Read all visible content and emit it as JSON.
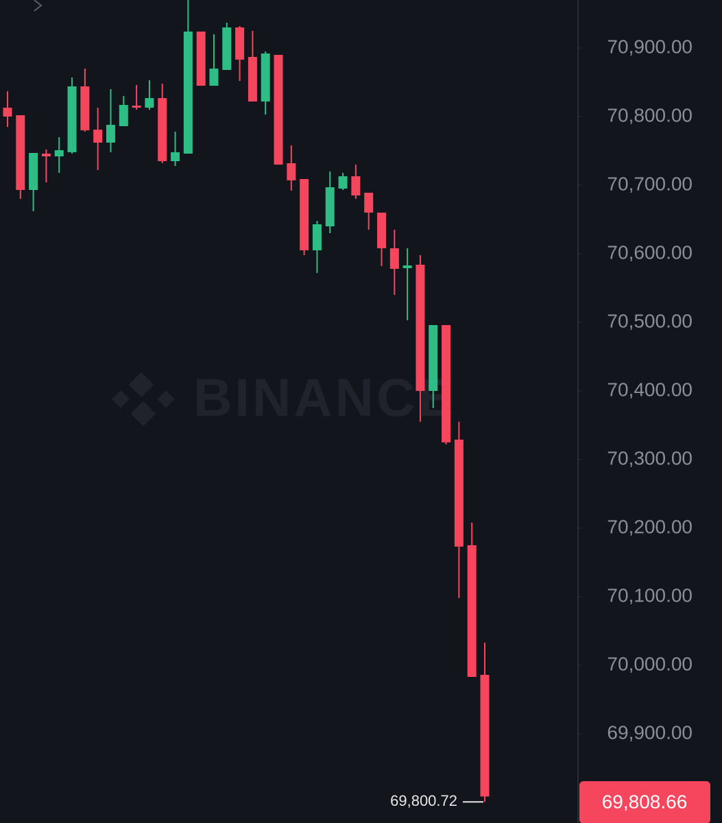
{
  "chart_data": {
    "type": "candlestick",
    "watermark": "BINANCE",
    "up_color": "#2ebd85",
    "down_color": "#f6465d",
    "open": [
      70813,
      70802,
      70693,
      70746,
      70742,
      70748,
      70844,
      70781,
      70762,
      70786,
      70816,
      70813,
      70827,
      70735,
      70746,
      70924,
      70845,
      70868,
      70930,
      70887,
      70822,
      70890,
      70732,
      70709,
      70605,
      70640,
      70695,
      70713,
      70689,
      70660,
      70608,
      70579,
      70584,
      70400,
      70496,
      70329,
      70175,
      69986
    ],
    "high": [
      70837,
      70802,
      70747,
      70752,
      70770,
      70857,
      70870,
      70813,
      70840,
      70830,
      70846,
      70853,
      70848,
      70778,
      70970,
      70924,
      70920,
      70937,
      70932,
      70925,
      70895,
      70890,
      70758,
      70709,
      70648,
      70720,
      70718,
      70730,
      70689,
      70660,
      70635,
      70608,
      70598,
      70496,
      70496,
      70355,
      70208,
      70033
    ],
    "low": [
      70785,
      70680,
      70662,
      70704,
      70718,
      70746,
      70778,
      70722,
      70748,
      70786,
      70810,
      70810,
      70732,
      70728,
      70746,
      70845,
      70845,
      70868,
      70852,
      70822,
      70803,
      70730,
      70692,
      70598,
      70572,
      70630,
      70693,
      70680,
      70635,
      70582,
      70540,
      70503,
      70355,
      70375,
      70322,
      70098,
      69983,
      69800.72
    ],
    "close": [
      70800,
      70693,
      70747,
      70742,
      70751,
      70844,
      70780,
      70762,
      70788,
      70817,
      70813,
      70827,
      70735,
      70748,
      70924,
      70845,
      70870,
      70930,
      70883,
      70822,
      70892,
      70730,
      70707,
      70605,
      70643,
      70697,
      70713,
      70685,
      70660,
      70608,
      70578,
      70583,
      70400,
      70496,
      70325,
      70173,
      69983,
      69808.66
    ],
    "ylim": [
      69770,
      70970
    ],
    "yticks": [
      {
        "value": 70900,
        "label": "70,900.00"
      },
      {
        "value": 70800,
        "label": "70,800.00"
      },
      {
        "value": 70700,
        "label": "70,700.00"
      },
      {
        "value": 70600,
        "label": "70,600.00"
      },
      {
        "value": 70500,
        "label": "70,500.00"
      },
      {
        "value": 70400,
        "label": "70,400.00"
      },
      {
        "value": 70300,
        "label": "70,300.00"
      },
      {
        "value": 70200,
        "label": "70,200.00"
      },
      {
        "value": 70100,
        "label": "70,100.00"
      },
      {
        "value": 70000,
        "label": "70,000.00"
      },
      {
        "value": 69900,
        "label": "69,900.00"
      }
    ],
    "last_price_label": "69,808.66",
    "low_label": "69,800.72"
  }
}
